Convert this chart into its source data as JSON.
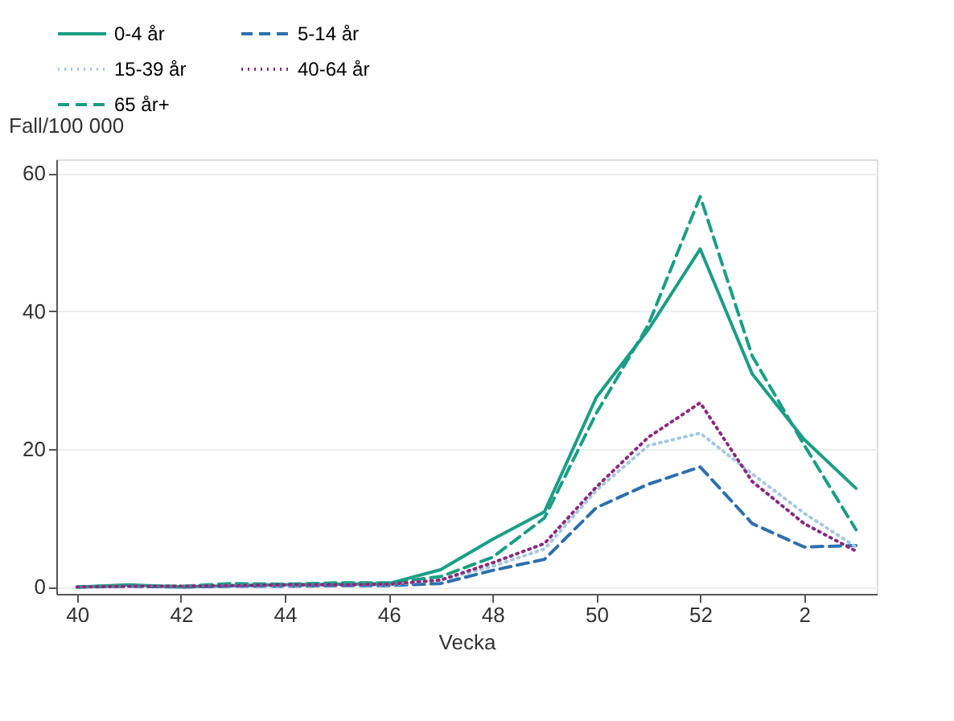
{
  "chart_data": {
    "type": "line",
    "ylabel": "Fall/100 000",
    "xlabel": "Vecka",
    "categories": [
      "40",
      null,
      "42",
      null,
      "44",
      null,
      "46",
      null,
      "48",
      null,
      "50",
      null,
      "52",
      null,
      "2",
      null
    ],
    "ylim": [
      -1,
      62
    ],
    "yticks": [
      0,
      20,
      40,
      60
    ],
    "grid": "y",
    "legend": "top",
    "marker": "none",
    "series": [
      {
        "name": "0-4 år",
        "color": "#1a9e84",
        "line_style": "solid",
        "values": [
          0,
          0.3,
          0,
          0.2,
          0.3,
          0.4,
          0.5,
          2.5,
          6.9,
          10.9,
          27.5,
          37.3,
          49,
          30.9,
          21.4,
          14.3
        ]
      },
      {
        "name": "5-14 år",
        "color": "#2e6fad",
        "line_style": "dashed",
        "values": [
          0,
          0.1,
          0,
          0.1,
          0.1,
          0.2,
          0.2,
          0.5,
          2.4,
          4,
          11.5,
          14.9,
          17.4,
          9.2,
          5.8,
          6
        ]
      },
      {
        "name": "15-39 år",
        "color": "#a6c8e0",
        "line_style": "dotted",
        "values": [
          0,
          0.1,
          0.1,
          0.2,
          0.2,
          0.3,
          0.3,
          1,
          3,
          5.5,
          14,
          20.5,
          22.3,
          16.4,
          10.7,
          5.8
        ]
      },
      {
        "name": "40-64 år",
        "color": "#8b2a7e",
        "line_style": "dotted",
        "values": [
          0,
          0.1,
          0.1,
          0.2,
          0.3,
          0.3,
          0.4,
          1,
          3.5,
          6.3,
          14.5,
          21.7,
          26.7,
          15.3,
          9.2,
          5.2
        ]
      },
      {
        "name": "65 år+",
        "color": "#1a9e84",
        "line_style": "dashed",
        "values": [
          0,
          0.2,
          0.1,
          0.5,
          0.4,
          0.6,
          0.6,
          1.5,
          4.3,
          10,
          25.2,
          38,
          56.6,
          33.5,
          20.6,
          8.3
        ]
      }
    ]
  }
}
